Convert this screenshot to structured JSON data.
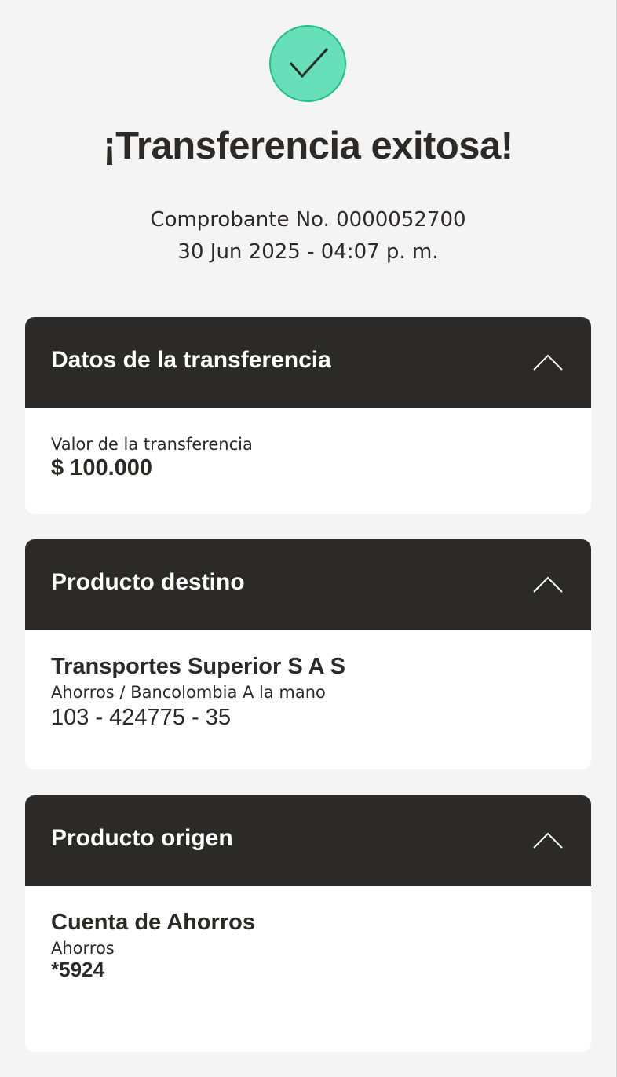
{
  "header": {
    "icon": "checkmark-circle-icon",
    "title": "¡Transferencia exitosa!",
    "receipt": "Comprobante No. 0000052700",
    "datetime": "30 Jun 2025 - 04:07 p. m."
  },
  "colors": {
    "success": "#67dfb9",
    "card_header": "#2c2a29",
    "background": "#f4f4f4"
  },
  "sections": [
    {
      "title": "Datos de la transferencia",
      "label": "Valor de la transferencia",
      "value": "$ 100.000"
    },
    {
      "title": "Producto destino",
      "name": "Transportes Superior S A S",
      "type": "Ahorros / Bancolombia A la mano",
      "account": "103 - 424775 - 35"
    },
    {
      "title": "Producto origen",
      "name": "Cuenta de Ahorros",
      "type": "Ahorros",
      "account": "*5924"
    }
  ]
}
